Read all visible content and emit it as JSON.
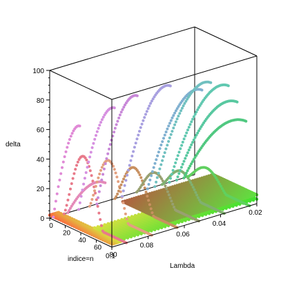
{
  "chart_data": {
    "type": "scatter",
    "projection": "3d-box",
    "title": "",
    "xlabel": "indice=n",
    "ylabel": "Lambda",
    "zlabel": "delta",
    "xlim": [
      0,
      80
    ],
    "ylim": [
      0.1,
      0.02
    ],
    "zlim": [
      0,
      100
    ],
    "x_ticks": [
      {
        "value": 0,
        "label": "0"
      },
      {
        "value": 20,
        "label": "20"
      },
      {
        "value": 40,
        "label": "40"
      },
      {
        "value": 60,
        "label": "60"
      },
      {
        "value": 80,
        "label": "80"
      }
    ],
    "y_ticks": [
      {
        "value": 0.1,
        "label": "0.1"
      },
      {
        "value": 0.08,
        "label": "0.08"
      },
      {
        "value": 0.06,
        "label": "0.06"
      },
      {
        "value": 0.04,
        "label": "0.04"
      },
      {
        "value": 0.02,
        "label": "0.02"
      }
    ],
    "z_ticks": [
      {
        "value": 0,
        "label": "0"
      },
      {
        "value": 20,
        "label": "20"
      },
      {
        "value": 40,
        "label": "40"
      },
      {
        "value": 60,
        "label": "60"
      },
      {
        "value": 80,
        "label": "80"
      },
      {
        "value": 100,
        "label": "100"
      }
    ],
    "grid": false,
    "legend": "none",
    "series_curves": [
      {
        "lambda": 0.098,
        "n_max": 34,
        "peak": 70,
        "shape": "rise",
        "color": "#e08ad6"
      },
      {
        "lambda": 0.092,
        "n_max": 80,
        "peak": 45,
        "shape": "hump",
        "color": "#e87a8a"
      },
      {
        "lambda": 0.09,
        "n_max": 48,
        "peak": 32,
        "shape": "rise",
        "color": "#e48ab8"
      },
      {
        "lambda": 0.084,
        "n_max": 46,
        "peak": 80,
        "shape": "rise",
        "color": "#d690e0"
      },
      {
        "lambda": 0.078,
        "n_max": 80,
        "peak": 37,
        "shape": "hump",
        "color": "#e3a080"
      },
      {
        "lambda": 0.074,
        "n_max": 52,
        "peak": 86,
        "shape": "rise",
        "color": "#c888d8"
      },
      {
        "lambda": 0.064,
        "n_max": 80,
        "peak": 27,
        "shape": "hump",
        "color": "#c89060"
      },
      {
        "lambda": 0.06,
        "n_max": 62,
        "peak": 90,
        "shape": "rise",
        "color": "#a8a0e0"
      },
      {
        "lambda": 0.052,
        "n_max": 80,
        "peak": 19,
        "shape": "hump",
        "color": "#98a070"
      },
      {
        "lambda": 0.046,
        "n_max": 70,
        "peak": 84,
        "shape": "rise",
        "color": "#80b0d0"
      },
      {
        "lambda": 0.042,
        "n_max": 72,
        "peak": 88,
        "shape": "rise",
        "color": "#70c0c0"
      },
      {
        "lambda": 0.038,
        "n_max": 80,
        "peak": 15,
        "shape": "hump",
        "color": "#80b070"
      },
      {
        "lambda": 0.034,
        "n_max": 76,
        "peak": 84,
        "shape": "rise",
        "color": "#60c8b0"
      },
      {
        "lambda": 0.03,
        "n_max": 78,
        "peak": 72,
        "shape": "rise",
        "color": "#58c8a0"
      },
      {
        "lambda": 0.026,
        "n_max": 80,
        "peak": 58,
        "shape": "rise",
        "color": "#50c880"
      },
      {
        "lambda": 0.024,
        "n_max": 80,
        "peak": 12,
        "shape": "hump",
        "color": "#60d060"
      }
    ],
    "floor_bands": [
      {
        "lambda_from": 0.1,
        "lambda_to": 0.095,
        "n_from": 0,
        "n_to": 80,
        "z": 2,
        "color_start": "#ff6040",
        "color_end": "#d8e040"
      },
      {
        "lambda_from": 0.095,
        "lambda_to": 0.02,
        "n_from": 46,
        "n_to": 80,
        "z": 3,
        "color_start": "#d8e040",
        "color_end": "#40e030"
      },
      {
        "lambda_from": 0.07,
        "lambda_to": 0.02,
        "n_from": 24,
        "n_to": 80,
        "z": 6,
        "color_start": "#b06040",
        "color_end": "#60e040"
      }
    ]
  }
}
